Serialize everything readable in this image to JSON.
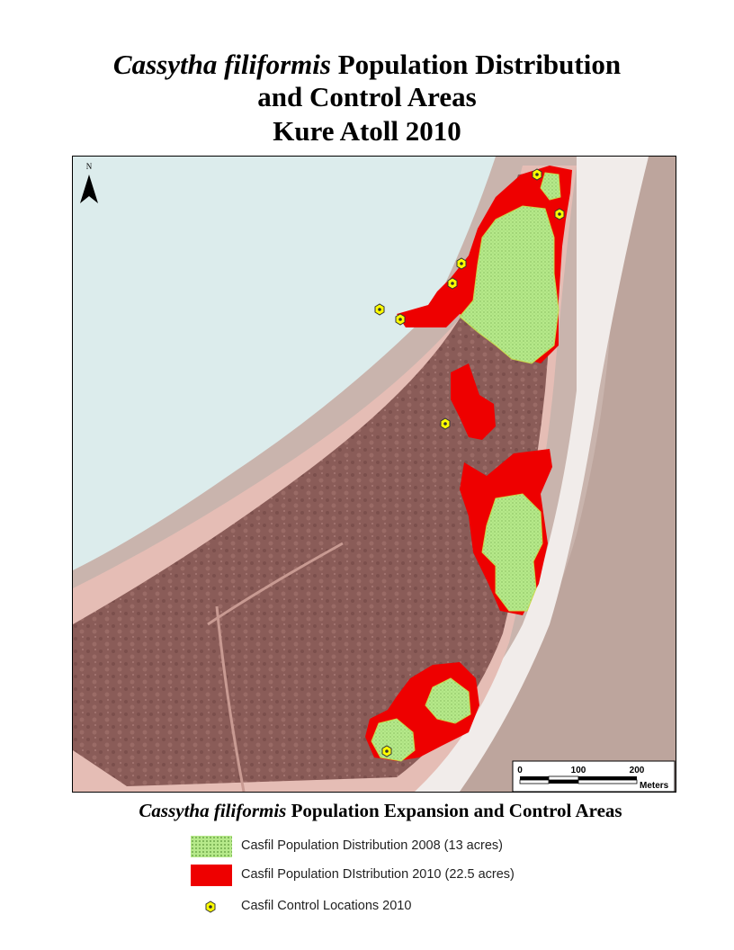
{
  "title": {
    "species": "Cassytha filiformis",
    "line1_rest": " Population Distribution",
    "line2": "and Control Areas",
    "line3": "Kure Atoll 2010"
  },
  "map": {
    "north_label": "N",
    "scale_labels": [
      "0",
      "100",
      "200"
    ],
    "scale_unit": "Meters"
  },
  "subtitle": {
    "species": "Cassytha filiformis",
    "rest": " Population Expansion and Control Areas"
  },
  "legend": [
    {
      "label": "Casfil Population Distribution 2008 (13 acres)",
      "color": "#b6e98a",
      "icon": "green-stipple-swatch"
    },
    {
      "label": "Casfil Population DIstribution 2010 (22.5 acres)",
      "color": "#ee0000",
      "icon": "red-swatch"
    },
    {
      "label": "Casfil Control Locations 2010",
      "color": "#ffff00",
      "icon": "yellow-hexagon-point"
    }
  ],
  "colors": {
    "land": "#8a5c58",
    "beach": "#e9c4bd",
    "lagoon": "#dcecec",
    "ocean": "#c4b0a8",
    "expansion_2010": "#ee0000",
    "distribution_2008": "#b6e98a",
    "control_marker": "#ffff00"
  }
}
